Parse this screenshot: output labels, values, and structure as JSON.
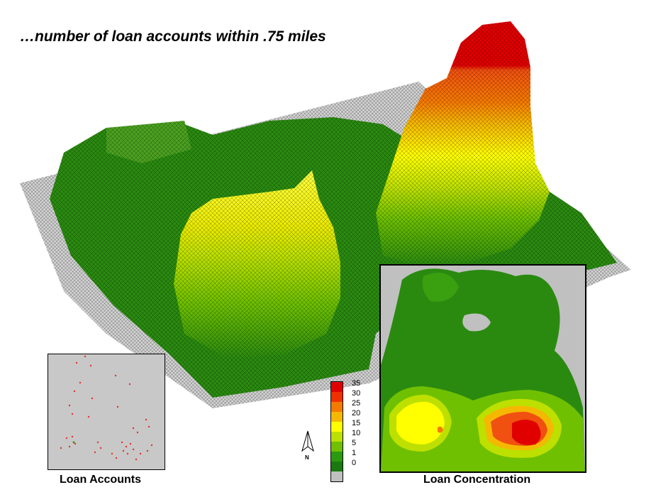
{
  "title": "…number of loan accounts within .75 miles",
  "panels": {
    "accounts": {
      "label": "Loan Accounts",
      "point_color": "#e8302a"
    },
    "concentration": {
      "label": "Loan Concentration"
    }
  },
  "legend": {
    "labels": [
      "35",
      "30",
      "25",
      "20",
      "15",
      "10",
      "5",
      "1",
      "0"
    ],
    "colors": [
      "#e00000",
      "#f03000",
      "#f57a00",
      "#f5b800",
      "#ffff00",
      "#bde000",
      "#6fc000",
      "#2a9a10",
      "#1a7a10",
      "#c0c0c0"
    ]
  },
  "north": {
    "label": "N"
  }
}
